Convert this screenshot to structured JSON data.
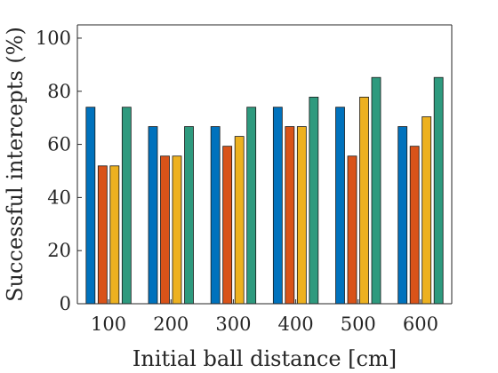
{
  "chart_data": {
    "type": "bar",
    "title": "",
    "xlabel": "Initial ball distance [cm]",
    "ylabel": "Successful intercepts (%)",
    "categories": [
      "100",
      "200",
      "300",
      "400",
      "500",
      "600"
    ],
    "ylim": [
      0,
      105
    ],
    "yticks": [
      "0",
      "20",
      "40",
      "60",
      "80",
      "100"
    ],
    "grid": false,
    "legend": "none",
    "series": [
      {
        "values": [
          74,
          66.7,
          66.7,
          74,
          74,
          66.7
        ],
        "color": "#0072BD"
      },
      {
        "values": [
          51.9,
          55.6,
          59.3,
          66.7,
          55.6,
          59.3
        ],
        "color": "#D95319"
      },
      {
        "values": [
          51.9,
          55.6,
          63,
          66.7,
          77.8,
          70.4
        ],
        "color": "#EDB120"
      },
      {
        "values": [
          74,
          66.7,
          74,
          77.8,
          85.2,
          85.2
        ],
        "color": "#2E9A7E"
      }
    ]
  }
}
